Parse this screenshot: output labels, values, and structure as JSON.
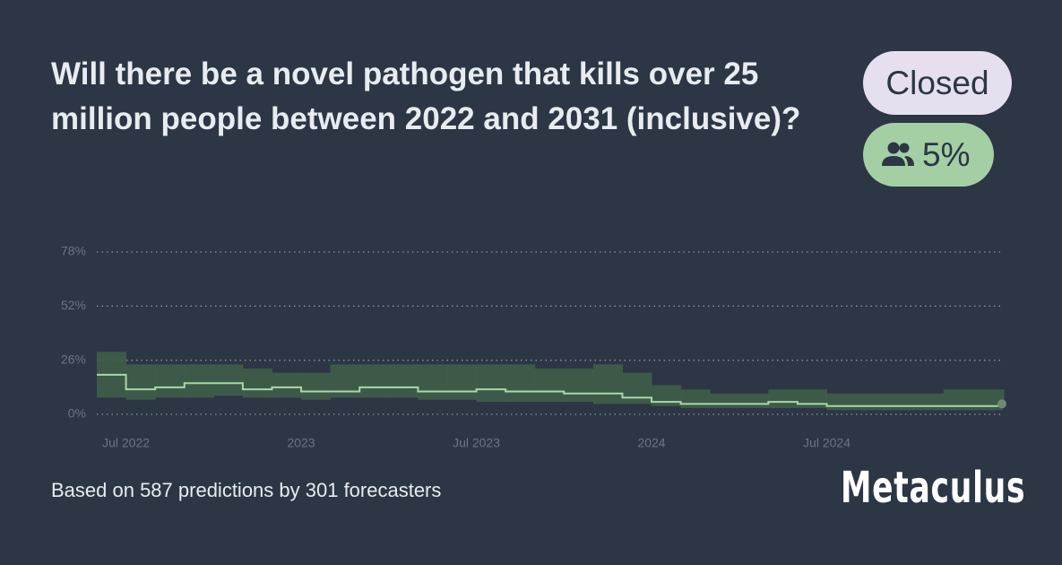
{
  "title": "Will there be a novel pathogen that kills over 25 million people between 2022 and 2031 (inclusive)?",
  "status": "Closed",
  "prediction": "5%",
  "footer": "Based on 587 predictions by 301 forecasters",
  "brand": "Metaculus",
  "chart_data": {
    "type": "line",
    "categories": [
      "2022-06",
      "2022-07",
      "2022-08",
      "2022-09",
      "2022-10",
      "2022-11",
      "2022-12",
      "2023-01",
      "2023-02",
      "2023-03",
      "2023-04",
      "2023-05",
      "2023-06",
      "2023-07",
      "2023-08",
      "2023-09",
      "2023-10",
      "2023-11",
      "2023-12",
      "2024-01",
      "2024-02",
      "2024-03",
      "2024-04",
      "2024-05",
      "2024-06",
      "2024-07",
      "2024-08",
      "2024-09",
      "2024-10",
      "2024-11",
      "2024-12",
      "2025-01"
    ],
    "series": [
      {
        "name": "median",
        "color": "#a8d8a8",
        "values": [
          19,
          12,
          13,
          15,
          15,
          12,
          13,
          11,
          11,
          13,
          13,
          11,
          11,
          12,
          11,
          11,
          10,
          10,
          8,
          6,
          5,
          5,
          5,
          6,
          5,
          4,
          4,
          4,
          4,
          4,
          4,
          5
        ]
      },
      {
        "name": "lower",
        "color": "#3f5e4a",
        "values": [
          8,
          7,
          8,
          8,
          9,
          8,
          8,
          7,
          8,
          8,
          8,
          7,
          7,
          6,
          6,
          6,
          6,
          5,
          5,
          4,
          3,
          3,
          3,
          3,
          3,
          2,
          2,
          2,
          2,
          2,
          2,
          3
        ]
      },
      {
        "name": "upper",
        "color": "#3f5e4a",
        "values": [
          30,
          24,
          24,
          24,
          24,
          22,
          20,
          20,
          24,
          24,
          24,
          24,
          24,
          24,
          24,
          22,
          22,
          24,
          20,
          14,
          12,
          10,
          10,
          12,
          12,
          10,
          10,
          10,
          10,
          12,
          12,
          12
        ]
      }
    ],
    "xticks": [
      {
        "value": "2022-07",
        "label": "Jul 2022"
      },
      {
        "value": "2023-01",
        "label": "2023"
      },
      {
        "value": "2023-07",
        "label": "Jul 2023"
      },
      {
        "value": "2024-01",
        "label": "2024"
      },
      {
        "value": "2024-07",
        "label": "Jul 2024"
      }
    ],
    "ylim": [
      0,
      78
    ],
    "yticks": [
      {
        "value": 0,
        "label": "0%"
      },
      {
        "value": 26,
        "label": "26%"
      },
      {
        "value": 52,
        "label": "52%"
      },
      {
        "value": 78,
        "label": "78%"
      }
    ],
    "grid": true
  }
}
